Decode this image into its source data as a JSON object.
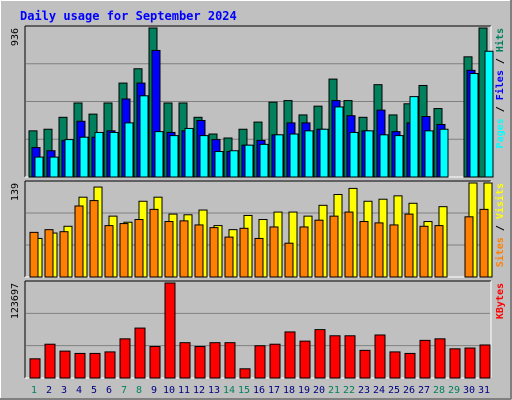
{
  "title": "Daily usage for September 2024",
  "colors": {
    "hits": "#00805c",
    "files": "#0000ff",
    "pages": "#00ffff",
    "sites": "#ff8000",
    "visits": "#ffff00",
    "kbytes": "#ff0000",
    "title": "#0000ff",
    "weekend_label": "#00805c",
    "weekday_label": "#000080"
  },
  "chart_data": [
    {
      "type": "bar",
      "title": "Daily usage for September 2024",
      "ylabel": "Pages / Files / Hits",
      "ylabel_parts": [
        {
          "text": "Pages",
          "color_key": "pages"
        },
        {
          "text": " / ",
          "color_key": "sep"
        },
        {
          "text": "Files",
          "color_key": "files"
        },
        {
          "text": " / ",
          "color_key": "sep"
        },
        {
          "text": "Hits",
          "color_key": "hits"
        }
      ],
      "ymax_label": "936",
      "ylim": [
        0,
        936
      ],
      "series": [
        {
          "name": "Hits",
          "values": [
            290,
            300,
            375,
            465,
            395,
            465,
            590,
            680,
            936,
            465,
            465,
            375,
            270,
            245,
            300,
            345,
            470,
            480,
            390,
            445,
            615,
            480,
            375,
            580,
            390,
            460,
            575,
            430,
            0,
            755,
            936
          ]
        },
        {
          "name": "Files",
          "values": [
            185,
            165,
            230,
            350,
            250,
            290,
            490,
            590,
            795,
            280,
            290,
            355,
            235,
            160,
            200,
            230,
            265,
            340,
            340,
            300,
            480,
            385,
            290,
            420,
            285,
            340,
            380,
            330,
            0,
            670,
            0
          ]
        },
        {
          "name": "Pages",
          "values": [
            125,
            125,
            235,
            250,
            280,
            280,
            340,
            510,
            285,
            260,
            305,
            260,
            160,
            165,
            200,
            205,
            265,
            270,
            290,
            300,
            440,
            280,
            290,
            265,
            260,
            505,
            290,
            300,
            0,
            650,
            790
          ]
        }
      ]
    },
    {
      "type": "bar",
      "ylabel": "Sites / Visits",
      "ylabel_parts": [
        {
          "text": "Sites",
          "color_key": "sites"
        },
        {
          "text": " / ",
          "color_key": "sep"
        },
        {
          "text": "Visits",
          "color_key": "visits"
        }
      ],
      "ymax_label": "139",
      "ylim": [
        0,
        139
      ],
      "series": [
        {
          "name": "Visits",
          "values": [
            57,
            65,
            75,
            118,
            133,
            90,
            81,
            112,
            118,
            93,
            92,
            99,
            76,
            70,
            91,
            85,
            96,
            96,
            90,
            106,
            122,
            131,
            112,
            115,
            120,
            109,
            82,
            104,
            0,
            139,
            139
          ]
        },
        {
          "name": "Sites",
          "values": [
            66,
            70,
            67,
            105,
            113,
            76,
            79,
            85,
            100,
            82,
            83,
            77,
            73,
            59,
            72,
            57,
            74,
            50,
            74,
            84,
            90,
            96,
            82,
            80,
            77,
            93,
            75,
            76,
            0,
            89,
            100
          ]
        }
      ]
    },
    {
      "type": "bar",
      "ylabel": "KBytes",
      "ylabel_parts": [
        {
          "text": "KBytes",
          "color_key": "kbytes"
        }
      ],
      "ymax_label": "123697",
      "ylim": [
        0,
        123697
      ],
      "series": [
        {
          "name": "KBytes",
          "values": [
            25000,
            44000,
            35000,
            32000,
            32000,
            34000,
            51000,
            65000,
            41000,
            123697,
            46000,
            41000,
            46000,
            46000,
            12000,
            42000,
            44000,
            60000,
            48000,
            63000,
            55000,
            55000,
            36000,
            56000,
            34000,
            32000,
            49000,
            51000,
            38000,
            39000,
            43000
          ]
        }
      ]
    }
  ],
  "x_axis": {
    "days": [
      "1",
      "2",
      "3",
      "4",
      "5",
      "6",
      "7",
      "8",
      "9",
      "10",
      "11",
      "12",
      "13",
      "14",
      "15",
      "16",
      "17",
      "18",
      "19",
      "20",
      "21",
      "22",
      "23",
      "24",
      "25",
      "26",
      "27",
      "28",
      "29",
      "30",
      "31"
    ],
    "weekend_days": [
      "1",
      "7",
      "8",
      "14",
      "15",
      "21",
      "22",
      "28",
      "29"
    ]
  }
}
